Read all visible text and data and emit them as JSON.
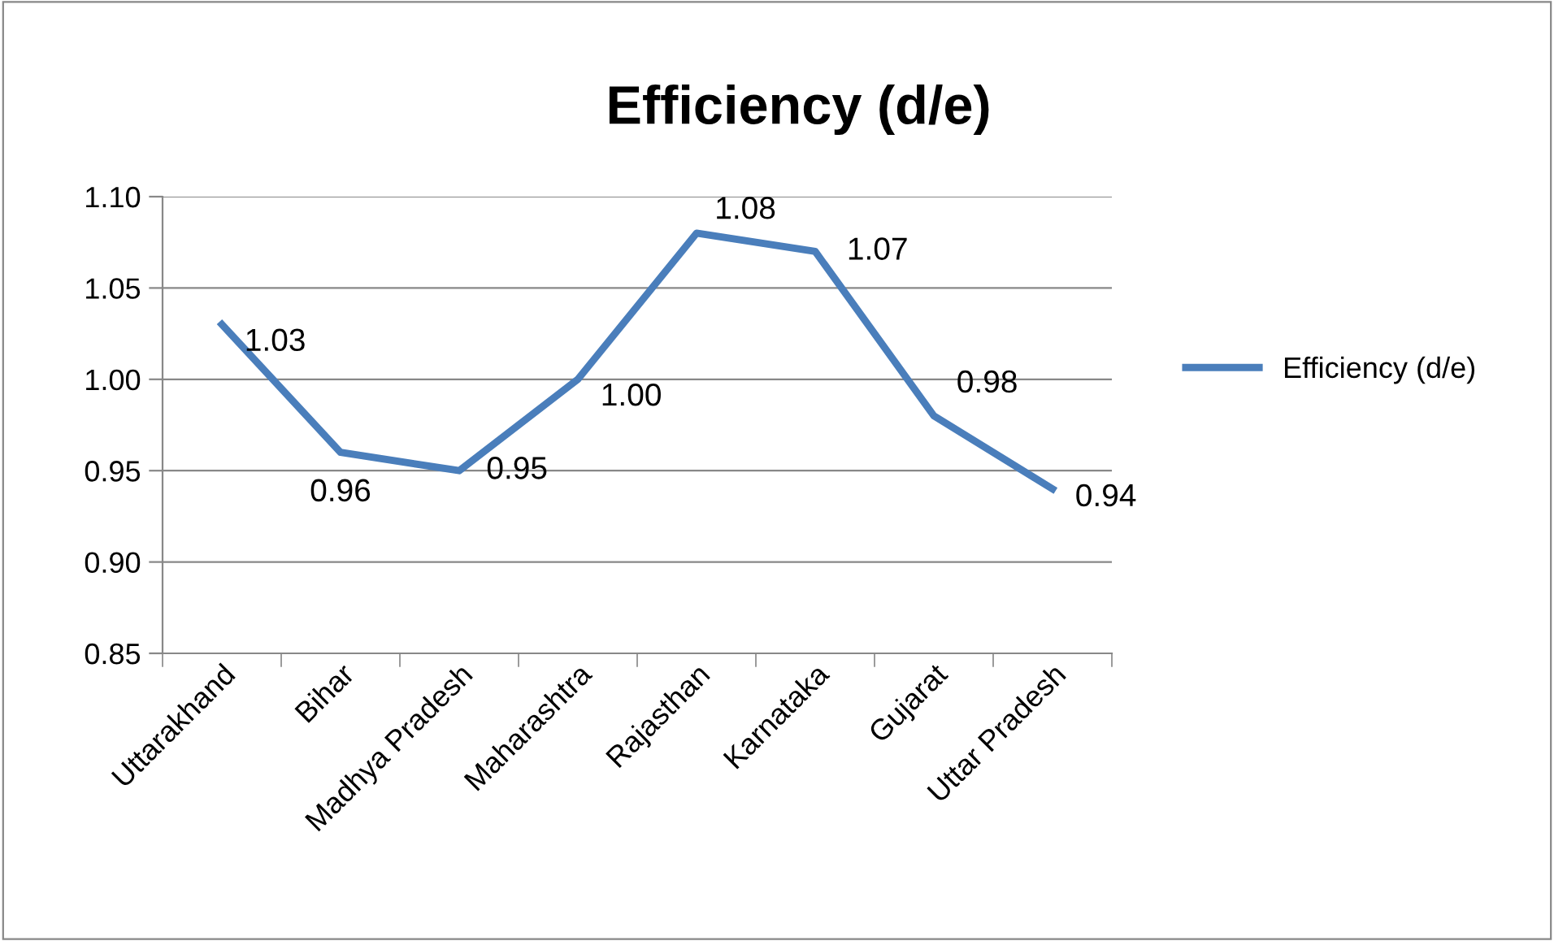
{
  "chart_data": {
    "type": "line",
    "title": "Efficiency (d/e)",
    "categories": [
      "Uttarakhand",
      "Bihar",
      "Madhya Pradesh",
      "Maharashtra",
      "Rajasthan",
      "Karnataka",
      "Gujarat",
      "Uttar Pradesh"
    ],
    "series": [
      {
        "name": "Efficiency (d/e)",
        "color": "#4a7ebb",
        "values": [
          1.03,
          0.96,
          0.95,
          1.0,
          1.08,
          1.07,
          0.98,
          0.94
        ],
        "value_labels": [
          "1.03",
          "0.96",
          "0.95",
          "1.00",
          "1.08",
          "1.07",
          "0.98",
          "0.94"
        ]
      }
    ],
    "ylim": [
      0.85,
      1.1
    ],
    "yticks": [
      {
        "value": 0.85,
        "label": "0.85"
      },
      {
        "value": 0.9,
        "label": "0.90"
      },
      {
        "value": 0.95,
        "label": "0.95"
      },
      {
        "value": 1.0,
        "label": "1.00"
      },
      {
        "value": 1.05,
        "label": "1.05"
      },
      {
        "value": 1.1,
        "label": "1.10"
      }
    ],
    "grid": "y",
    "legend": "right",
    "marker": "none",
    "line_style": "solid"
  }
}
